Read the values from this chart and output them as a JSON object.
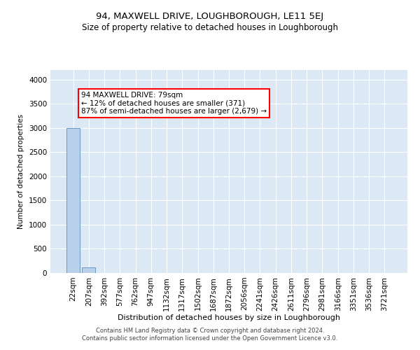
{
  "title": "94, MAXWELL DRIVE, LOUGHBOROUGH, LE11 5EJ",
  "subtitle": "Size of property relative to detached houses in Loughborough",
  "xlabel": "Distribution of detached houses by size in Loughborough",
  "ylabel": "Number of detached properties",
  "footer_line1": "Contains HM Land Registry data © Crown copyright and database right 2024.",
  "footer_line2": "Contains public sector information licensed under the Open Government Licence v3.0.",
  "bar_labels": [
    "22sqm",
    "207sqm",
    "392sqm",
    "577sqm",
    "762sqm",
    "947sqm",
    "1132sqm",
    "1317sqm",
    "1502sqm",
    "1687sqm",
    "1872sqm",
    "2056sqm",
    "2241sqm",
    "2426sqm",
    "2611sqm",
    "2796sqm",
    "2981sqm",
    "3166sqm",
    "3351sqm",
    "3536sqm",
    "3721sqm"
  ],
  "bar_values": [
    3000,
    115,
    5,
    2,
    1,
    1,
    0,
    0,
    0,
    0,
    0,
    0,
    0,
    0,
    0,
    0,
    0,
    0,
    0,
    0,
    0
  ],
  "bar_color": "#b8d0ea",
  "bar_edge_color": "#6899c4",
  "background_color": "#dce9f5",
  "annotation_text": "94 MAXWELL DRIVE: 79sqm\n← 12% of detached houses are smaller (371)\n87% of semi-detached houses are larger (2,679) →",
  "annotation_box_color": "white",
  "annotation_box_edge_color": "red",
  "ylim": [
    0,
    4200
  ],
  "yticks": [
    0,
    500,
    1000,
    1500,
    2000,
    2500,
    3000,
    3500,
    4000
  ],
  "title_fontsize": 9.5,
  "subtitle_fontsize": 8.5,
  "xlabel_fontsize": 8.0,
  "ylabel_fontsize": 7.5,
  "tick_fontsize": 7.5,
  "footer_fontsize": 6.0
}
